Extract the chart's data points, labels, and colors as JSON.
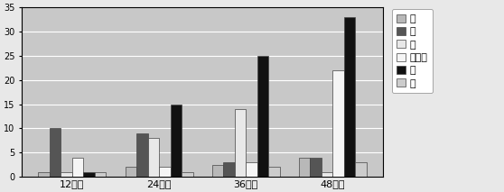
{
  "categories": [
    "12个月",
    "24个月",
    "36个月",
    "48个月"
  ],
  "legend_labels": [
    "氮",
    "磷",
    "钾",
    "有机物",
    "水",
    "盐"
  ],
  "series": {
    "氮": [
      1,
      2,
      2.5,
      4
    ],
    "磷": [
      10,
      9,
      3,
      4
    ],
    "钾": [
      1,
      8,
      14,
      1
    ],
    "有机物": [
      4,
      2,
      3,
      22
    ],
    "水": [
      1,
      15,
      25,
      33
    ],
    "盐": [
      1,
      1,
      2,
      3
    ]
  },
  "colors": {
    "氮": "#b8b8b8",
    "磷": "#555555",
    "钾": "#e8e8e8",
    "有机物": "#f5f5f5",
    "水": "#111111",
    "盐": "#cccccc"
  },
  "ylim": [
    0,
    35
  ],
  "yticks": [
    0,
    5,
    10,
    15,
    20,
    25,
    30,
    35
  ],
  "bar_width": 0.13,
  "plot_bg": "#c8c8c8",
  "fig_bg": "#e8e8e8",
  "grid_color": "#ffffff"
}
